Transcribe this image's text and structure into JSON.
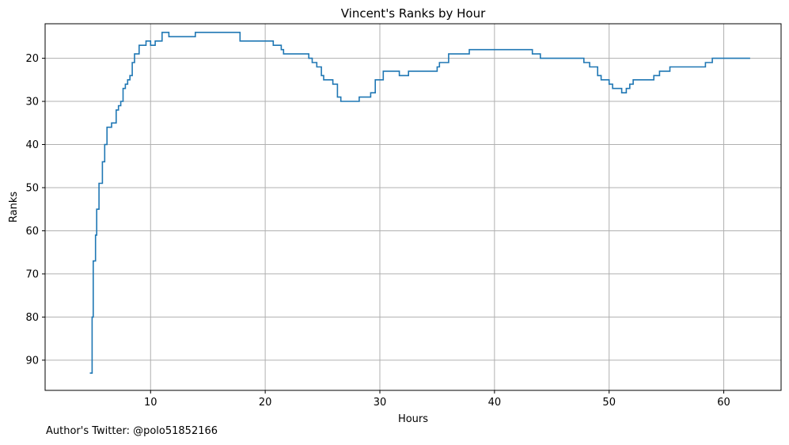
{
  "chart_data": {
    "type": "line",
    "drawstyle": "steps-post",
    "title": "Vincent's Ranks by Hour",
    "xlabel": "Hours",
    "ylabel": "Ranks",
    "xlim": [
      0.8,
      65.0
    ],
    "ylim": [
      97.0,
      12.0
    ],
    "y_inverted": true,
    "xticks": [
      10,
      20,
      30,
      40,
      50,
      60
    ],
    "yticks": [
      20,
      30,
      40,
      50,
      60,
      70,
      80,
      90
    ],
    "grid": true,
    "legend": "none",
    "colors": {
      "line": "#1f77b4",
      "grid": "#b0b0b0",
      "axes": "#000000"
    },
    "series": [
      {
        "x": [
          4.7,
          4.9,
          5.0,
          5.2,
          5.3,
          5.5,
          5.8,
          6.0,
          6.2,
          6.4,
          6.6,
          7.0,
          7.2,
          7.4,
          7.6,
          7.8,
          8.0,
          8.2,
          8.4,
          8.6,
          8.8,
          9.0,
          9.2,
          9.6,
          10.0,
          10.4,
          10.7,
          11.0,
          11.6,
          11.8,
          13.9,
          17.8,
          20.3,
          20.7,
          21.4,
          21.6,
          23.6,
          23.8,
          24.1,
          24.5,
          24.9,
          25.1,
          25.9,
          26.3,
          26.6,
          28.2,
          29.2,
          29.6,
          30.3,
          31.7,
          32.5,
          35.0,
          35.2,
          35.6,
          36.0,
          37.8,
          43.0,
          43.3,
          44.0,
          47.4,
          47.8,
          48.3,
          49.0,
          49.3,
          50.0,
          50.3,
          51.1,
          51.5,
          51.8,
          52.1,
          53.9,
          54.4,
          55.3,
          58.4,
          59.0,
          62.3
        ],
        "y": [
          93,
          80,
          67,
          61,
          55,
          49,
          44,
          40,
          36,
          36,
          35,
          32,
          31,
          30,
          27,
          26,
          25,
          24,
          21,
          19,
          19,
          17,
          17,
          16,
          17,
          16,
          16,
          14,
          15,
          15,
          14,
          16,
          16,
          17,
          18,
          19,
          19,
          20,
          21,
          22,
          24,
          25,
          26,
          29,
          30,
          29,
          28,
          25,
          23,
          24,
          23,
          22,
          21,
          21,
          19,
          18,
          18,
          19,
          20,
          20,
          21,
          22,
          24,
          25,
          26,
          27,
          28,
          27,
          26,
          25,
          24,
          23,
          22,
          21,
          20,
          20
        ]
      }
    ]
  },
  "footnote": "Author's Twitter: @polo51852166"
}
